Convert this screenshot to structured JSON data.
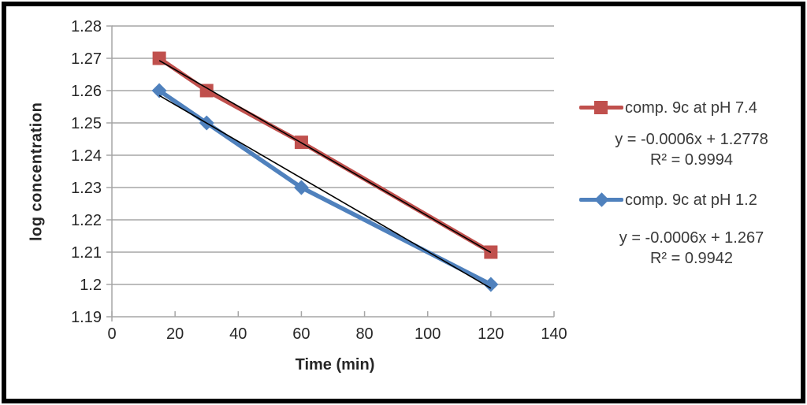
{
  "frame": {
    "border_color": "#000000",
    "background": "#FFFFFF"
  },
  "chart_data": {
    "type": "line",
    "title": "",
    "xlabel": "Time (min)",
    "ylabel": "log concentration",
    "xlim": [
      0,
      140
    ],
    "ylim": [
      1.19,
      1.28
    ],
    "x_ticks": [
      0,
      20,
      40,
      60,
      80,
      100,
      120,
      140
    ],
    "y_ticks": [
      {
        "value": 1.19,
        "label": "1.19"
      },
      {
        "value": 1.2,
        "label": "1.2"
      },
      {
        "value": 1.21,
        "label": "1.21"
      },
      {
        "value": 1.22,
        "label": "1.22"
      },
      {
        "value": 1.23,
        "label": "1.23"
      },
      {
        "value": 1.24,
        "label": "1.24"
      },
      {
        "value": 1.25,
        "label": "1.25"
      },
      {
        "value": 1.26,
        "label": "1.26"
      },
      {
        "value": 1.27,
        "label": "1.27"
      },
      {
        "value": 1.28,
        "label": "1.28"
      }
    ],
    "grid": true,
    "grid_color": "#A6A6A6",
    "axis_color": "#A6A6A6",
    "tick_label_color": "#262626",
    "legend_position": "right",
    "series": [
      {
        "name": "comp. 9c at pH 7.4",
        "color": "#C0504D",
        "marker": "square",
        "points": [
          {
            "x": 15,
            "y": 1.27
          },
          {
            "x": 30,
            "y": 1.26
          },
          {
            "x": 60,
            "y": 1.244
          },
          {
            "x": 120,
            "y": 1.21
          }
        ],
        "trendline": {
          "slope": -0.000566,
          "intercept": 1.2778,
          "color": "#000000",
          "x_start": 15,
          "x_end": 120
        },
        "equation": "y = -0.0006x + 1.2778",
        "r_squared": "R² = 0.9994"
      },
      {
        "name": "comp. 9c at pH 1.2",
        "color": "#4F81BD",
        "marker": "diamond",
        "points": [
          {
            "x": 15,
            "y": 1.26
          },
          {
            "x": 30,
            "y": 1.25
          },
          {
            "x": 60,
            "y": 1.23
          },
          {
            "x": 120,
            "y": 1.2
          }
        ],
        "trendline": {
          "slope": -0.000568,
          "intercept": 1.267,
          "color": "#000000",
          "x_start": 15,
          "x_end": 120
        },
        "equation": "y = -0.0006x + 1.267",
        "r_squared": "R² = 0.9942"
      }
    ]
  }
}
